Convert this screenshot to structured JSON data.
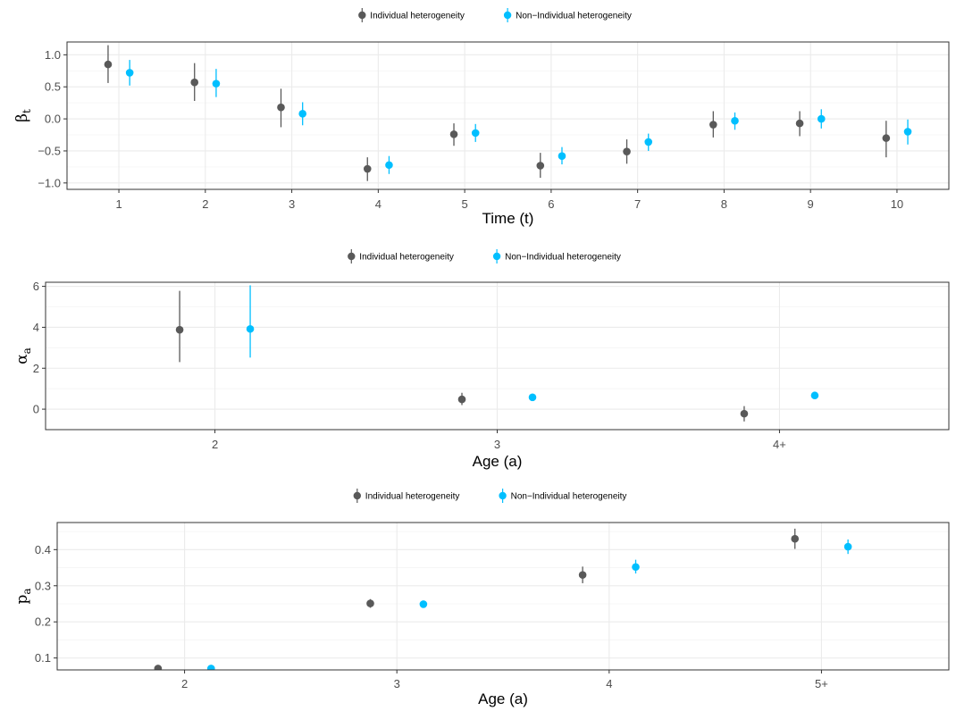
{
  "colors": {
    "individual": "#595959",
    "non_individual": "#00bfff",
    "grid_major": "#ebebeb",
    "grid_minor": "#f4f4f4",
    "panel_border": "#333333",
    "tick_text": "#4d4d4d"
  },
  "chart_data": [
    {
      "type": "scatter",
      "variant": "pointrange",
      "legend": [
        "Individual heterogeneity",
        "Non−Individual heterogeneity"
      ],
      "legend_position": "top",
      "xlabel": "Time (t)",
      "ylabel_main": "β",
      "ylabel_sub": "t",
      "categories": [
        "1",
        "2",
        "3",
        "4",
        "5",
        "6",
        "7",
        "8",
        "9",
        "10"
      ],
      "ylim": [
        -1.1,
        1.2
      ],
      "yticks": [
        -1.0,
        -0.5,
        0.0,
        0.5,
        1.0
      ],
      "ytick_labels": [
        "−1.0",
        "−0.5",
        "0.0",
        "0.5",
        "1.0"
      ],
      "grid": true,
      "series": [
        {
          "name": "Individual heterogeneity",
          "values": [
            0.85,
            0.57,
            0.18,
            -0.78,
            -0.24,
            -0.73,
            -0.51,
            -0.09,
            -0.07,
            -0.3
          ],
          "lower": [
            0.56,
            0.28,
            -0.13,
            -0.97,
            -0.42,
            -0.92,
            -0.7,
            -0.29,
            -0.27,
            -0.6
          ],
          "upper": [
            1.15,
            0.87,
            0.47,
            -0.6,
            -0.07,
            -0.53,
            -0.32,
            0.12,
            0.12,
            -0.03
          ]
        },
        {
          "name": "Non−Individual heterogeneity",
          "values": [
            0.72,
            0.55,
            0.08,
            -0.72,
            -0.22,
            -0.58,
            -0.36,
            -0.03,
            0.0,
            -0.2
          ],
          "lower": [
            0.52,
            0.34,
            -0.1,
            -0.86,
            -0.36,
            -0.71,
            -0.5,
            -0.17,
            -0.15,
            -0.4
          ],
          "upper": [
            0.92,
            0.78,
            0.26,
            -0.58,
            -0.08,
            -0.44,
            -0.23,
            0.1,
            0.15,
            -0.01
          ]
        }
      ]
    },
    {
      "type": "scatter",
      "variant": "pointrange",
      "legend": [
        "Individual heterogeneity",
        "Non−Individual heterogeneity"
      ],
      "legend_position": "top",
      "xlabel": "Age (a)",
      "ylabel_main": "α",
      "ylabel_sub": "a",
      "categories": [
        "2",
        "3",
        "4+"
      ],
      "ylim": [
        -1.0,
        6.2
      ],
      "yticks": [
        0,
        2,
        4,
        6
      ],
      "ytick_labels": [
        "0",
        "2",
        "4",
        "6"
      ],
      "grid": true,
      "series": [
        {
          "name": "Individual heterogeneity",
          "values": [
            3.88,
            0.48,
            -0.22
          ],
          "lower": [
            2.3,
            0.2,
            -0.6
          ],
          "upper": [
            5.78,
            0.8,
            0.15
          ]
        },
        {
          "name": "Non−Individual heterogeneity",
          "values": [
            3.92,
            0.58,
            0.67
          ],
          "lower": [
            2.52,
            0.45,
            0.57
          ],
          "upper": [
            6.05,
            0.72,
            0.77
          ]
        }
      ]
    },
    {
      "type": "scatter",
      "variant": "pointrange",
      "legend": [
        "Individual heterogeneity",
        "Non−Individual heterogeneity"
      ],
      "legend_position": "top",
      "xlabel": "Age (a)",
      "ylabel_main": "p",
      "ylabel_sub": "a",
      "categories": [
        "2",
        "3",
        "4",
        "5+"
      ],
      "ylim": [
        0.067,
        0.475
      ],
      "yticks": [
        0.1,
        0.2,
        0.3,
        0.4
      ],
      "ytick_labels": [
        "0.1",
        "0.2",
        "0.3",
        "0.4"
      ],
      "grid": true,
      "series": [
        {
          "name": "Individual heterogeneity",
          "values": [
            0.071,
            0.251,
            0.33,
            0.43
          ],
          "lower": [
            0.067,
            0.239,
            0.307,
            0.402
          ],
          "upper": [
            0.075,
            0.263,
            0.353,
            0.458
          ]
        },
        {
          "name": "Non−Individual heterogeneity",
          "values": [
            0.071,
            0.249,
            0.352,
            0.408
          ],
          "lower": [
            0.067,
            0.24,
            0.334,
            0.388
          ],
          "upper": [
            0.075,
            0.258,
            0.372,
            0.428
          ]
        }
      ]
    }
  ]
}
